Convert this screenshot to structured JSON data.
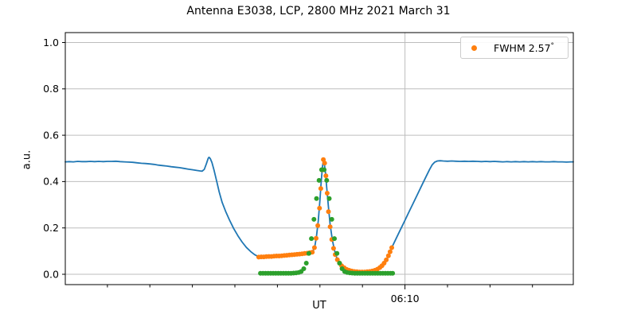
{
  "figure": {
    "background": "#ffffff"
  },
  "chart_data": {
    "type": "line+scatter",
    "title": "Antenna E3038, LCP, 2800 MHz 2021 March 31",
    "xlabel": "UT",
    "ylabel": "a.u.",
    "x_unit": "minutes_since_midnight_UT",
    "xlim": [
      290.1,
      409.6
    ],
    "ylim": [
      -0.0446,
      1.0429
    ],
    "grid": {
      "horizontal": true,
      "vertical_at_major": true,
      "color": "#bdbdbd"
    },
    "yticks": [
      {
        "v": 0.0,
        "label": "0.0"
      },
      {
        "v": 0.2,
        "label": "0.2"
      },
      {
        "v": 0.4,
        "label": "0.4"
      },
      {
        "v": 0.6,
        "label": "0.6"
      },
      {
        "v": 0.8,
        "label": "0.8"
      },
      {
        "v": 1.0,
        "label": "1.0"
      }
    ],
    "xticks": {
      "major": [
        {
          "v": 370,
          "label": "06:10"
        }
      ],
      "minor": [
        300,
        310,
        320,
        330,
        340,
        350,
        360,
        380,
        390,
        400
      ]
    },
    "legend": {
      "position": "upper right",
      "entries": [
        {
          "label": "FWHM 2.57",
          "degree": "°",
          "marker": "dot",
          "color": "#ff7f0e"
        }
      ]
    },
    "colors": {
      "signal": "#1f77b4",
      "data_dots": "#ff7f0e",
      "fit_dots": "#2ca02c",
      "spine": "#000000"
    },
    "series": [
      {
        "name": "signal-line",
        "type": "line",
        "color": "#1f77b4",
        "width": 1.8,
        "points": [
          [
            290.1,
            0.485
          ],
          [
            291,
            0.486
          ],
          [
            292,
            0.485
          ],
          [
            293,
            0.487
          ],
          [
            294,
            0.486
          ],
          [
            295,
            0.486
          ],
          [
            296,
            0.487
          ],
          [
            297,
            0.486
          ],
          [
            298,
            0.487
          ],
          [
            299,
            0.486
          ],
          [
            300,
            0.487
          ],
          [
            301,
            0.487
          ],
          [
            302,
            0.488
          ],
          [
            303,
            0.486
          ],
          [
            304,
            0.485
          ],
          [
            305,
            0.484
          ],
          [
            306,
            0.483
          ],
          [
            307,
            0.481
          ],
          [
            308,
            0.479
          ],
          [
            309,
            0.478
          ],
          [
            310,
            0.476
          ],
          [
            311,
            0.474
          ],
          [
            312,
            0.471
          ],
          [
            313,
            0.469
          ],
          [
            314,
            0.467
          ],
          [
            315,
            0.464
          ],
          [
            316,
            0.462
          ],
          [
            317,
            0.46
          ],
          [
            318,
            0.457
          ],
          [
            319,
            0.454
          ],
          [
            320,
            0.451
          ],
          [
            321,
            0.448
          ],
          [
            321.8,
            0.446
          ],
          [
            322.3,
            0.445
          ],
          [
            322.8,
            0.453
          ],
          [
            323.3,
            0.478
          ],
          [
            323.7,
            0.5
          ],
          [
            323.9,
            0.505
          ],
          [
            324.2,
            0.499
          ],
          [
            324.6,
            0.482
          ],
          [
            325.1,
            0.448
          ],
          [
            325.7,
            0.402
          ],
          [
            326.3,
            0.355
          ],
          [
            327,
            0.31
          ],
          [
            327.8,
            0.272
          ],
          [
            328.7,
            0.235
          ],
          [
            329.7,
            0.198
          ],
          [
            330.7,
            0.166
          ],
          [
            331.7,
            0.139
          ],
          [
            332.7,
            0.116
          ],
          [
            333.7,
            0.098
          ],
          [
            334.6,
            0.085
          ],
          [
            335.6,
            0.075
          ],
          [
            336.6,
            0.075
          ],
          [
            337.6,
            0.076
          ],
          [
            338.6,
            0.077
          ],
          [
            339.6,
            0.078
          ],
          [
            340.6,
            0.08
          ],
          [
            341.6,
            0.081
          ],
          [
            342.6,
            0.082
          ],
          [
            343.6,
            0.084
          ],
          [
            344.6,
            0.086
          ],
          [
            345.6,
            0.088
          ],
          [
            346.6,
            0.09
          ],
          [
            347.6,
            0.093
          ],
          [
            348.3,
            0.097
          ],
          [
            348.8,
            0.12
          ],
          [
            349.2,
            0.165
          ],
          [
            349.6,
            0.23
          ],
          [
            350,
            0.32
          ],
          [
            350.3,
            0.4
          ],
          [
            350.6,
            0.465
          ],
          [
            350.8,
            0.49
          ],
          [
            351,
            0.483
          ],
          [
            351.3,
            0.44
          ],
          [
            351.6,
            0.375
          ],
          [
            352,
            0.29
          ],
          [
            352.4,
            0.215
          ],
          [
            352.9,
            0.15
          ],
          [
            353.4,
            0.105
          ],
          [
            354,
            0.068
          ],
          [
            354.6,
            0.047
          ],
          [
            355.2,
            0.035
          ],
          [
            356,
            0.025
          ],
          [
            357,
            0.017
          ],
          [
            358,
            0.013
          ],
          [
            359,
            0.011
          ],
          [
            360,
            0.01
          ],
          [
            361,
            0.01
          ],
          [
            362,
            0.012
          ],
          [
            362.8,
            0.015
          ],
          [
            363.6,
            0.021
          ],
          [
            364.3,
            0.03
          ],
          [
            365,
            0.044
          ],
          [
            365.6,
            0.06
          ],
          [
            366.2,
            0.082
          ],
          [
            366.9,
            0.115
          ],
          [
            368,
            0.157
          ],
          [
            369,
            0.195
          ],
          [
            370,
            0.233
          ],
          [
            371,
            0.271
          ],
          [
            372,
            0.309
          ],
          [
            373,
            0.347
          ],
          [
            374,
            0.385
          ],
          [
            375,
            0.423
          ],
          [
            375.8,
            0.452
          ],
          [
            376.4,
            0.472
          ],
          [
            377,
            0.484
          ],
          [
            377.6,
            0.489
          ],
          [
            378.3,
            0.49
          ],
          [
            379,
            0.489
          ],
          [
            380,
            0.488
          ],
          [
            381,
            0.489
          ],
          [
            382,
            0.488
          ],
          [
            383,
            0.487
          ],
          [
            384,
            0.488
          ],
          [
            385,
            0.487
          ],
          [
            386,
            0.488
          ],
          [
            387,
            0.487
          ],
          [
            388,
            0.486
          ],
          [
            389,
            0.487
          ],
          [
            390,
            0.486
          ],
          [
            391,
            0.487
          ],
          [
            392,
            0.486
          ],
          [
            393,
            0.485
          ],
          [
            394,
            0.486
          ],
          [
            395,
            0.485
          ],
          [
            396,
            0.486
          ],
          [
            397,
            0.485
          ],
          [
            398,
            0.486
          ],
          [
            399,
            0.485
          ],
          [
            400,
            0.486
          ],
          [
            401,
            0.485
          ],
          [
            402,
            0.486
          ],
          [
            403,
            0.485
          ],
          [
            404,
            0.485
          ],
          [
            405,
            0.486
          ],
          [
            406,
            0.485
          ],
          [
            407,
            0.485
          ],
          [
            408,
            0.484
          ],
          [
            409,
            0.485
          ],
          [
            409.6,
            0.485
          ]
        ]
      },
      {
        "name": "measured-dots",
        "type": "scatter",
        "color": "#ff7f0e",
        "radius": 3,
        "points": [
          [
            335.6,
            0.074
          ],
          [
            336.2,
            0.075
          ],
          [
            336.8,
            0.075
          ],
          [
            337.4,
            0.076
          ],
          [
            338.0,
            0.077
          ],
          [
            338.6,
            0.077
          ],
          [
            339.2,
            0.078
          ],
          [
            339.8,
            0.079
          ],
          [
            340.4,
            0.079
          ],
          [
            341.0,
            0.08
          ],
          [
            341.6,
            0.081
          ],
          [
            342.2,
            0.082
          ],
          [
            342.8,
            0.083
          ],
          [
            343.4,
            0.084
          ],
          [
            344.0,
            0.085
          ],
          [
            344.6,
            0.086
          ],
          [
            345.2,
            0.087
          ],
          [
            345.8,
            0.088
          ],
          [
            346.4,
            0.09
          ],
          [
            347.0,
            0.091
          ],
          [
            347.6,
            0.093
          ],
          [
            348.2,
            0.095
          ],
          [
            348.7,
            0.115
          ],
          [
            349.1,
            0.155
          ],
          [
            349.5,
            0.21
          ],
          [
            349.9,
            0.285
          ],
          [
            350.2,
            0.37
          ],
          [
            350.5,
            0.45
          ],
          [
            350.8,
            0.495
          ],
          [
            351.1,
            0.48
          ],
          [
            351.4,
            0.425
          ],
          [
            351.7,
            0.35
          ],
          [
            352.0,
            0.27
          ],
          [
            352.4,
            0.205
          ],
          [
            352.8,
            0.15
          ],
          [
            353.2,
            0.112
          ],
          [
            353.6,
            0.085
          ],
          [
            354.1,
            0.063
          ],
          [
            354.6,
            0.048
          ],
          [
            355.1,
            0.037
          ],
          [
            355.7,
            0.028
          ],
          [
            356.3,
            0.021
          ],
          [
            356.9,
            0.017
          ],
          [
            357.5,
            0.014
          ],
          [
            358.1,
            0.012
          ],
          [
            358.7,
            0.011
          ],
          [
            359.3,
            0.01
          ],
          [
            359.9,
            0.01
          ],
          [
            360.5,
            0.01
          ],
          [
            361.1,
            0.011
          ],
          [
            361.7,
            0.012
          ],
          [
            362.3,
            0.014
          ],
          [
            362.9,
            0.017
          ],
          [
            363.5,
            0.022
          ],
          [
            364.1,
            0.029
          ],
          [
            364.6,
            0.037
          ],
          [
            365.1,
            0.048
          ],
          [
            365.6,
            0.062
          ],
          [
            366.1,
            0.08
          ],
          [
            366.5,
            0.097
          ],
          [
            366.9,
            0.115
          ]
        ]
      },
      {
        "name": "gaussian-fit-dots",
        "type": "scatter",
        "color": "#2ca02c",
        "radius": 3,
        "points": [
          [
            336.0,
            0.004
          ],
          [
            336.6,
            0.004
          ],
          [
            337.2,
            0.004
          ],
          [
            337.8,
            0.004
          ],
          [
            338.4,
            0.004
          ],
          [
            339.0,
            0.004
          ],
          [
            339.6,
            0.004
          ],
          [
            340.2,
            0.004
          ],
          [
            340.8,
            0.004
          ],
          [
            341.4,
            0.004
          ],
          [
            342.0,
            0.004
          ],
          [
            342.6,
            0.004
          ],
          [
            343.2,
            0.004
          ],
          [
            343.8,
            0.005
          ],
          [
            344.4,
            0.006
          ],
          [
            345.0,
            0.008
          ],
          [
            345.6,
            0.012
          ],
          [
            346.2,
            0.024
          ],
          [
            346.8,
            0.048
          ],
          [
            347.4,
            0.09
          ],
          [
            348.0,
            0.154
          ],
          [
            348.6,
            0.237
          ],
          [
            349.2,
            0.327
          ],
          [
            349.8,
            0.405
          ],
          [
            350.4,
            0.451
          ],
          [
            351.0,
            0.451
          ],
          [
            351.6,
            0.405
          ],
          [
            352.2,
            0.327
          ],
          [
            352.8,
            0.237
          ],
          [
            353.4,
            0.154
          ],
          [
            354.0,
            0.09
          ],
          [
            354.6,
            0.048
          ],
          [
            355.2,
            0.024
          ],
          [
            355.8,
            0.012
          ],
          [
            356.4,
            0.008
          ],
          [
            357.0,
            0.006
          ],
          [
            357.6,
            0.005
          ],
          [
            358.2,
            0.004
          ],
          [
            358.8,
            0.004
          ],
          [
            359.4,
            0.004
          ],
          [
            360.0,
            0.004
          ],
          [
            360.6,
            0.004
          ],
          [
            361.2,
            0.004
          ],
          [
            361.8,
            0.004
          ],
          [
            362.4,
            0.004
          ],
          [
            363.0,
            0.004
          ],
          [
            363.6,
            0.004
          ],
          [
            364.2,
            0.004
          ],
          [
            364.8,
            0.004
          ],
          [
            365.4,
            0.004
          ],
          [
            366.0,
            0.004
          ],
          [
            366.6,
            0.004
          ],
          [
            367.1,
            0.004
          ]
        ]
      }
    ]
  }
}
